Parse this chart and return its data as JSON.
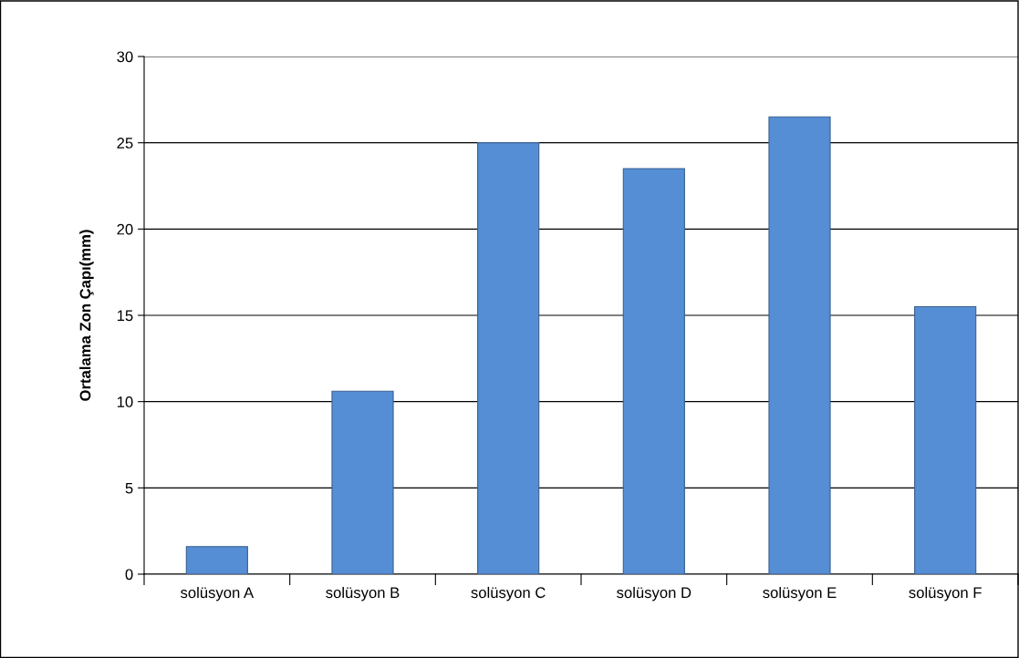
{
  "chart_data": {
    "type": "bar",
    "ylabel": "Ortalama Zon Çapı(mm)",
    "categories": [
      "solüsyon A",
      "solüsyon B",
      "solüsyon C",
      "solüsyon D",
      "solüsyon E",
      "solüsyon F"
    ],
    "values": [
      1.6,
      10.6,
      25,
      23.5,
      26.5,
      15.5
    ],
    "color": "#558ed5",
    "ylim": [
      0,
      30
    ],
    "yticks": [
      0,
      5,
      10,
      15,
      20,
      25,
      30
    ],
    "grid": "y",
    "legend": false
  }
}
